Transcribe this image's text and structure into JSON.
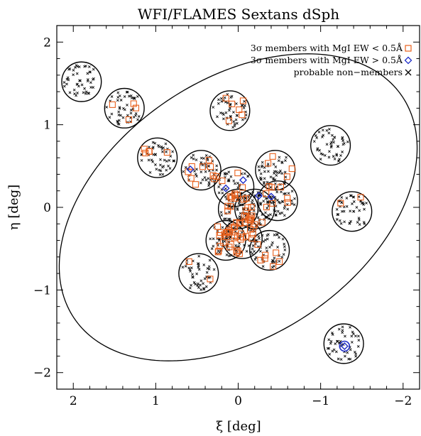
{
  "chart_data": {
    "type": "scatter",
    "title": "WFI/FLAMES Sextans dSph",
    "xlabel": "ξ [deg]",
    "ylabel": "η [deg]",
    "xlim": [
      2.2,
      -2.2
    ],
    "ylim": [
      -2.2,
      2.2
    ],
    "x_ticks": [
      2,
      1,
      0,
      -1,
      -2
    ],
    "y_ticks": [
      -2,
      -1,
      0,
      1,
      2
    ],
    "x_tick_labels": [
      "2",
      "1",
      "0",
      "−1",
      "−2"
    ],
    "y_tick_labels": [
      "−2",
      "−1",
      "0",
      "1",
      "2"
    ],
    "grid": false,
    "legend_position": "top-right",
    "legend": [
      {
        "label": "3σ members with MgI EW < 0.5Å",
        "marker": "square",
        "color": "#e8601c"
      },
      {
        "label": "3σ members with MgI EW > 0.5Å",
        "marker": "diamond",
        "color": "#1f2ec8"
      },
      {
        "label": "probable non−members",
        "marker": "cross",
        "color": "#000000"
      }
    ],
    "tidal_ellipse": {
      "center": [
        0.0,
        0.0
      ],
      "semi_major": 2.4,
      "semi_minor": 1.55,
      "position_angle_deg": 56
    },
    "field_radius": 0.24,
    "fields": [
      {
        "xi": 1.9,
        "eta": 1.52,
        "members": 0
      },
      {
        "xi": 1.38,
        "eta": 1.2,
        "members": 4
      },
      {
        "xi": 0.1,
        "eta": 1.17,
        "members": 6
      },
      {
        "xi": 0.98,
        "eta": 0.6,
        "members": 5
      },
      {
        "xi": 0.45,
        "eta": 0.45,
        "members": 10
      },
      {
        "xi": 0.05,
        "eta": 0.25,
        "members": 6
      },
      {
        "xi": -0.45,
        "eta": 0.45,
        "members": 4
      },
      {
        "xi": -0.48,
        "eta": 0.08,
        "members": 7
      },
      {
        "xi": -1.12,
        "eta": 0.75,
        "members": 0
      },
      {
        "xi": -1.38,
        "eta": -0.05,
        "members": 2
      },
      {
        "xi": 0.0,
        "eta": -0.02,
        "members": 18
      },
      {
        "xi": -0.2,
        "eta": -0.02,
        "members": 9
      },
      {
        "xi": 0.15,
        "eta": -0.4,
        "members": 20
      },
      {
        "xi": -0.05,
        "eta": -0.38,
        "members": 14
      },
      {
        "xi": -0.38,
        "eta": -0.52,
        "members": 6
      },
      {
        "xi": 0.48,
        "eta": -0.8,
        "members": 2
      },
      {
        "xi": -1.28,
        "eta": -1.65,
        "members": 0
      }
    ],
    "high_ew_members": [
      {
        "xi": 0.58,
        "eta": 0.46
      },
      {
        "xi": 0.15,
        "eta": 0.23
      },
      {
        "xi": -0.06,
        "eta": 0.33
      },
      {
        "xi": -0.25,
        "eta": 0.14
      },
      {
        "xi": -0.4,
        "eta": 0.13
      },
      {
        "xi": -1.29,
        "eta": -1.68
      }
    ]
  }
}
